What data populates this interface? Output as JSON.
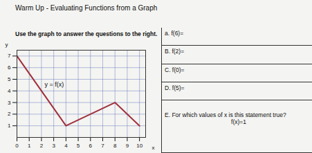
{
  "title": "Warm Up - Evaluating Functions from a Graph",
  "instruction": "Use the graph to answer the questions to the right.",
  "questions": [
    [
      "a. f(6)="
    ],
    [
      "B. f(2)="
    ],
    [
      "C. f(0)="
    ],
    [
      "D. f(5)="
    ],
    [
      "E. For which values of x is this statement true?",
      "f(x)=1"
    ]
  ],
  "chart_data": {
    "type": "line",
    "x": [
      0,
      4,
      8,
      10
    ],
    "values": [
      7,
      1,
      3,
      1
    ],
    "color": "#a0303c",
    "xlim": [
      0,
      10.5
    ],
    "ylim": [
      0,
      7.5
    ],
    "xticks": [
      0,
      1,
      2,
      3,
      4,
      5,
      6,
      7,
      8,
      9,
      10
    ],
    "yticks": [
      1,
      2,
      3,
      4,
      5,
      6,
      7
    ],
    "x_label": "x",
    "y_label": "y",
    "annotation": "y = f(x)",
    "grid": true
  }
}
